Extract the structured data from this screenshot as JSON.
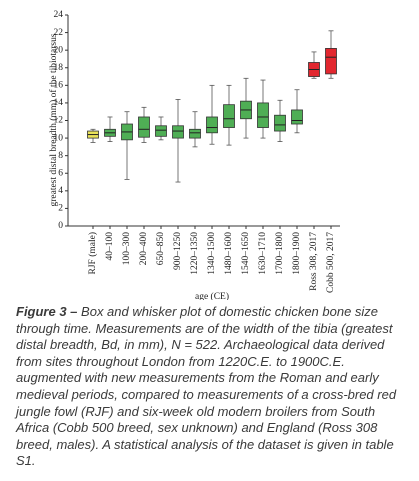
{
  "chart_data": {
    "type": "box",
    "ylabel": "greatest distal breadth (mm) of the tibiotarsus",
    "xlabel": "age (CE)",
    "categories": [
      "RJF (male)",
      "40–100",
      "100–300",
      "200–400",
      "650–850",
      "900–1250",
      "1220–1350",
      "1340–1500",
      "1480–1600",
      "1540–1650",
      "1630–1710",
      "1700–1800",
      "1800–1900",
      "Ross 308, 2017",
      "Cobb 500, 2017"
    ],
    "boxes": [
      {
        "whislo": 9.5,
        "q1": 10.0,
        "med": 10.4,
        "q3": 10.8,
        "whishi": 11.0
      },
      {
        "whislo": 9.6,
        "q1": 10.2,
        "med": 10.6,
        "q3": 11.0,
        "whishi": 12.4
      },
      {
        "whislo": 5.3,
        "q1": 9.8,
        "med": 10.7,
        "q3": 11.6,
        "whishi": 13.0
      },
      {
        "whislo": 9.5,
        "q1": 10.1,
        "med": 11.0,
        "q3": 12.4,
        "whishi": 13.5
      },
      {
        "whislo": 9.8,
        "q1": 10.2,
        "med": 10.9,
        "q3": 11.4,
        "whishi": 12.4
      },
      {
        "whislo": 5.0,
        "q1": 10.0,
        "med": 10.8,
        "q3": 11.4,
        "whishi": 14.4
      },
      {
        "whislo": 9.0,
        "q1": 10.0,
        "med": 10.6,
        "q3": 11.0,
        "whishi": 13.0
      },
      {
        "whislo": 9.3,
        "q1": 10.6,
        "med": 11.2,
        "q3": 12.4,
        "whishi": 16.0
      },
      {
        "whislo": 9.2,
        "q1": 11.2,
        "med": 12.2,
        "q3": 13.8,
        "whishi": 16.0
      },
      {
        "whislo": 10.0,
        "q1": 12.2,
        "med": 13.2,
        "q3": 14.2,
        "whishi": 16.8
      },
      {
        "whislo": 10.0,
        "q1": 11.2,
        "med": 12.4,
        "q3": 14.0,
        "whishi": 16.6
      },
      {
        "whislo": 9.6,
        "q1": 10.8,
        "med": 11.5,
        "q3": 12.6,
        "whishi": 14.3
      },
      {
        "whislo": 10.6,
        "q1": 11.6,
        "med": 12.0,
        "q3": 13.2,
        "whishi": 15.5
      },
      {
        "whislo": 16.8,
        "q1": 17.0,
        "med": 17.8,
        "q3": 18.6,
        "whishi": 19.8
      },
      {
        "whislo": 16.8,
        "q1": 17.3,
        "med": 19.2,
        "q3": 20.2,
        "whishi": 22.2
      }
    ],
    "colors": [
      "#e9e25a",
      "#4fae55",
      "#4fae55",
      "#4fae55",
      "#4fae55",
      "#4fae55",
      "#4fae55",
      "#4fae55",
      "#4fae55",
      "#4fae55",
      "#4fae55",
      "#4fae55",
      "#4fae55",
      "#e2272f",
      "#e2272f"
    ],
    "ylim": [
      0,
      24
    ],
    "yticks": [
      0,
      2,
      4,
      6,
      8,
      10,
      12,
      14,
      16,
      18,
      20,
      22,
      24
    ]
  },
  "caption": {
    "label": "Figure 3 –",
    "text": "Box and whisker plot of domestic chicken bone size through time. Measurements are of the width of the tibia (greatest distal breadth, Bd, in mm), N = 522. Archaeological data derived from sites throughout London from 1220C.E. to 1900C.E. augmented with new measurements from the Roman and early medieval periods, compared to measurements of a cross-bred red jungle fowl (RJF) and six-week old modern broilers from South Africa (Cobb 500 breed, sex unknown) and England (Ross 308 breed, males). A statistical analysis of the dataset is given in table S1."
  }
}
